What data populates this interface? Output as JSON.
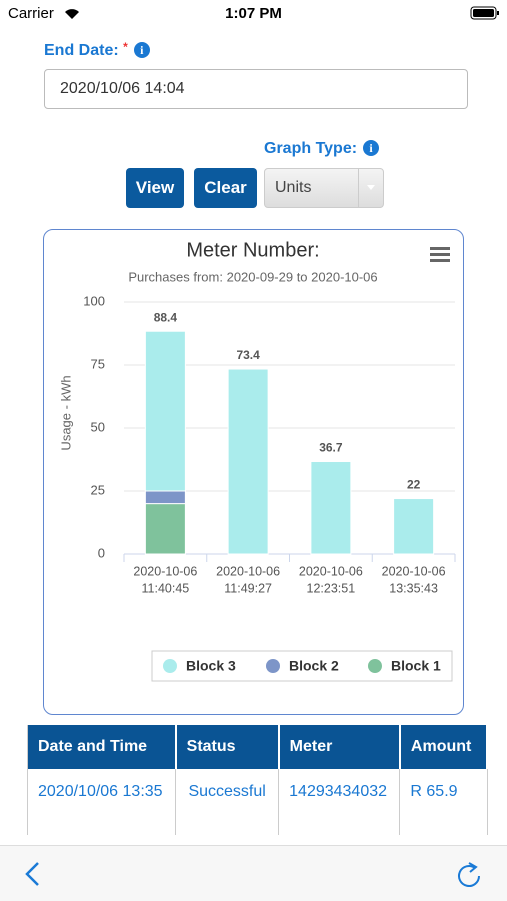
{
  "status_bar": {
    "carrier": "Carrier",
    "time": "1:07 PM"
  },
  "form": {
    "end_date_label": "End Date:",
    "required_mark": "*",
    "end_date_value": "2020/10/06 14:04",
    "graph_type_label": "Graph Type:",
    "view_button": "View",
    "clear_button": "Clear",
    "graph_type_value": "Units"
  },
  "chart_data": {
    "type": "stacked_bar",
    "title": "Meter Number:",
    "subtitle": "Purchases from: 2020-09-29 to 2020-10-06",
    "y_label": "Usage - kWh",
    "categories": [
      [
        "2020-10-06",
        "11:40:45"
      ],
      [
        "2020-10-06",
        "11:49:27"
      ],
      [
        "2020-10-06",
        "12:23:51"
      ],
      [
        "2020-10-06",
        "13:35:43"
      ]
    ],
    "series": [
      {
        "name": "Block 3",
        "color": "#aaecec",
        "values": [
          63.4,
          73.4,
          36.7,
          22
        ]
      },
      {
        "name": "Block 2",
        "color": "#7d95c8",
        "values": [
          5,
          null,
          null,
          null
        ]
      },
      {
        "name": "Block 1",
        "color": "#7fc29c",
        "values": [
          20,
          null,
          null,
          null
        ]
      }
    ],
    "totals": [
      88.4,
      73.4,
      36.7,
      22
    ],
    "ylim": [
      0,
      100
    ],
    "yticks": [
      0,
      25,
      50,
      75,
      100
    ],
    "grid": true
  },
  "table": {
    "headers": [
      "Date and Time",
      "Status",
      "Meter",
      "Amount"
    ],
    "rows": [
      [
        "2020/10/06 13:35",
        "Successful",
        "14293434032",
        "R 65.9"
      ]
    ]
  }
}
